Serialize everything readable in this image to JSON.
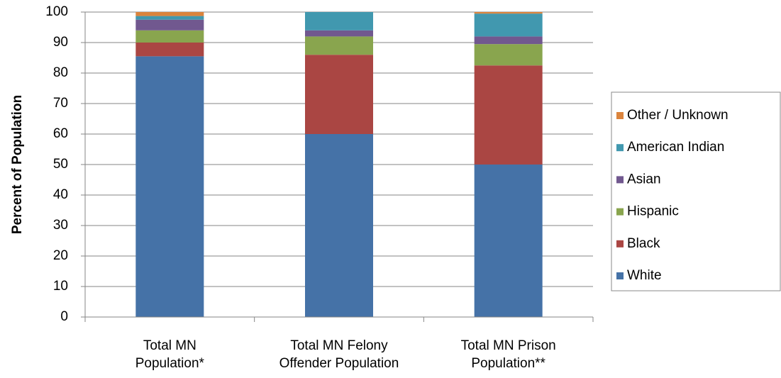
{
  "chart_data": {
    "type": "stacked_bar",
    "y_label": "Percent of Population",
    "categories": [
      [
        "Total MN",
        "Population*"
      ],
      [
        "Total MN Felony",
        "Offender Population"
      ],
      [
        "Total MN Prison",
        "Population**"
      ]
    ],
    "series": [
      {
        "name": "White",
        "color": "#4572a7",
        "values": [
          85.5,
          60,
          50
        ]
      },
      {
        "name": "Black",
        "color": "#aa4643",
        "values": [
          4.5,
          26,
          32.5
        ]
      },
      {
        "name": "Hispanic",
        "color": "#89a54e",
        "values": [
          4,
          6,
          7
        ]
      },
      {
        "name": "Asian",
        "color": "#71588f",
        "values": [
          3.5,
          2,
          2.5
        ]
      },
      {
        "name": "American Indian",
        "color": "#4198af",
        "values": [
          1.2,
          6,
          7.5
        ]
      },
      {
        "name": "Other / Unknown",
        "color": "#db843d",
        "values": [
          1.3,
          0,
          0.5
        ]
      }
    ],
    "ylim": [
      0,
      100
    ],
    "yticks": [
      0,
      10,
      20,
      30,
      40,
      50,
      60,
      70,
      80,
      90,
      100
    ],
    "grid": true,
    "legend": "right"
  }
}
